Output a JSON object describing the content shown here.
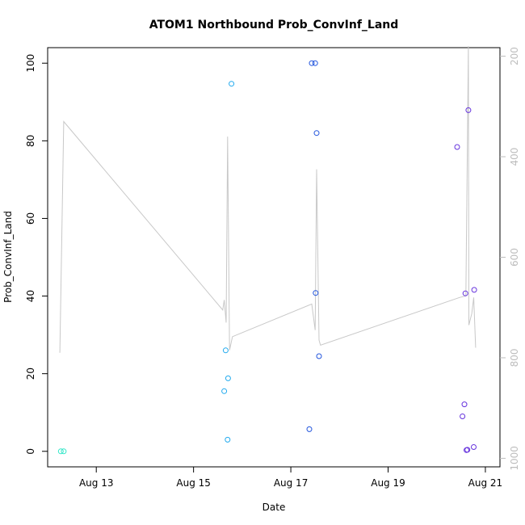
{
  "chart_data": {
    "type": "scatter",
    "title": "ATOM1 Northbound Prob_ConvInf_Land",
    "xlabel": "Date",
    "ylabel": "Prob_ConvInf_Land",
    "x_ticks": [
      {
        "label": "Aug 13",
        "day": 13
      },
      {
        "label": "Aug 15",
        "day": 15
      },
      {
        "label": "Aug 17",
        "day": 17
      },
      {
        "label": "Aug 19",
        "day": 19
      },
      {
        "label": "Aug 21",
        "day": 21
      }
    ],
    "xlim_days": [
      12.0,
      21.3
    ],
    "y_ticks": [
      "0",
      "20",
      "40",
      "60",
      "80",
      "100"
    ],
    "ylim": [
      -4,
      104
    ],
    "y2_ticks": [
      "200",
      "400",
      "600",
      "800",
      "1000"
    ],
    "y2lim_reversed": [
      1017,
      183
    ],
    "y2_color": "#bdbdbd",
    "points": [
      {
        "day": 12.27,
        "y": 0.0,
        "color": "#33e6c8"
      },
      {
        "day": 12.33,
        "y": 0.0,
        "color": "#33e6c8"
      },
      {
        "day": 15.63,
        "y": 15.5,
        "color": "#22aaee"
      },
      {
        "day": 15.66,
        "y": 26.0,
        "color": "#22aaee"
      },
      {
        "day": 15.7,
        "y": 3.0,
        "color": "#22aaee"
      },
      {
        "day": 15.71,
        "y": 18.8,
        "color": "#22aaee"
      },
      {
        "day": 15.78,
        "y": 94.7,
        "color": "#22aaee"
      },
      {
        "day": 17.38,
        "y": 5.7,
        "color": "#2255dd"
      },
      {
        "day": 17.43,
        "y": 100.0,
        "color": "#2255dd"
      },
      {
        "day": 17.5,
        "y": 100.0,
        "color": "#2255dd"
      },
      {
        "day": 17.51,
        "y": 40.8,
        "color": "#2255dd"
      },
      {
        "day": 17.53,
        "y": 82.0,
        "color": "#2255dd"
      },
      {
        "day": 17.58,
        "y": 24.5,
        "color": "#2255dd"
      },
      {
        "day": 20.42,
        "y": 78.4,
        "color": "#6633dd"
      },
      {
        "day": 20.53,
        "y": 9.0,
        "color": "#6633dd"
      },
      {
        "day": 20.57,
        "y": 12.1,
        "color": "#6633dd"
      },
      {
        "day": 20.59,
        "y": 40.7,
        "color": "#6633dd"
      },
      {
        "day": 20.61,
        "y": 0.3,
        "color": "#6633dd"
      },
      {
        "day": 20.63,
        "y": 0.4,
        "color": "#6633dd"
      },
      {
        "day": 20.65,
        "y": 87.9,
        "color": "#6633dd"
      },
      {
        "day": 20.76,
        "y": 1.1,
        "color": "#6633dd"
      },
      {
        "day": 20.77,
        "y": 41.6,
        "color": "#6633dd"
      }
    ],
    "line_color": "#c8c8c8",
    "line": [
      {
        "day": 12.25,
        "y2": 790
      },
      {
        "day": 12.33,
        "y2": 330
      },
      {
        "day": 15.6,
        "y2": 705
      },
      {
        "day": 15.63,
        "y": 0,
        "y2": 685
      },
      {
        "day": 15.67,
        "y2": 730
      },
      {
        "day": 15.7,
        "y2": 360
      },
      {
        "day": 15.74,
        "y2": 785
      },
      {
        "day": 15.8,
        "y2": 758
      },
      {
        "day": 17.43,
        "y2": 693
      },
      {
        "day": 17.5,
        "y2": 745
      },
      {
        "day": 17.53,
        "y2": 425
      },
      {
        "day": 17.58,
        "y2": 765
      },
      {
        "day": 17.61,
        "y2": 775
      },
      {
        "day": 20.47,
        "y2": 680
      },
      {
        "day": 20.6,
        "y2": 677
      },
      {
        "day": 20.65,
        "y2": 180
      },
      {
        "day": 20.66,
        "y2": 735
      },
      {
        "day": 20.72,
        "y2": 712
      },
      {
        "day": 20.76,
        "y2": 680
      },
      {
        "day": 20.8,
        "y2": 780
      }
    ]
  }
}
